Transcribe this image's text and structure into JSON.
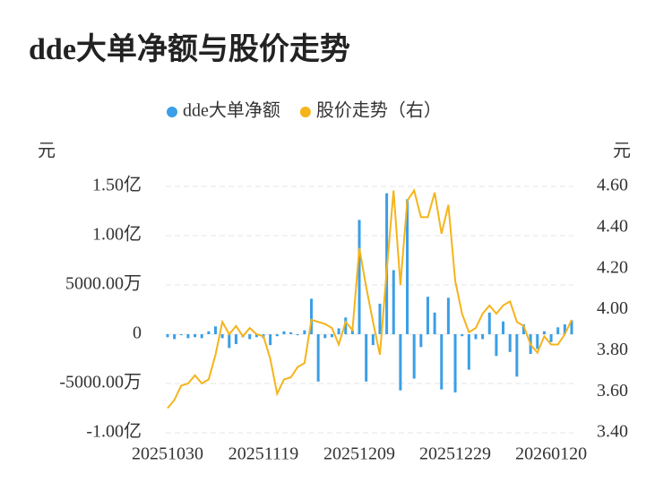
{
  "chart_data": {
    "type": "bar",
    "title": "dde大单净额与股价走势",
    "ylabel": "元",
    "y2label": "元",
    "categories": [
      "20251030",
      null,
      null,
      null,
      null,
      null,
      null,
      null,
      null,
      null,
      null,
      null,
      null,
      null,
      "20251119",
      null,
      null,
      null,
      null,
      null,
      null,
      null,
      null,
      null,
      null,
      null,
      null,
      null,
      "20251209",
      null,
      null,
      null,
      null,
      null,
      null,
      null,
      null,
      null,
      null,
      null,
      null,
      null,
      "20251229",
      null,
      null,
      null,
      null,
      null,
      null,
      null,
      null,
      null,
      null,
      null,
      null,
      null,
      "20260120",
      null,
      null,
      null
    ],
    "series": [
      {
        "name": "dde大单净额",
        "type": "bar",
        "color": "#3a9fe6",
        "values": [
          -300,
          -500,
          -100,
          -400,
          -300,
          -400,
          300,
          800,
          -400,
          -1400,
          -1000,
          -300,
          -500,
          -300,
          -400,
          -1100,
          -200,
          300,
          200,
          -100,
          400,
          3600,
          -4800,
          -400,
          -300,
          600,
          1700,
          400,
          11600,
          -4800,
          -1100,
          3100,
          14300,
          6500,
          -5700,
          13700,
          -4500,
          -1300,
          3800,
          2200,
          -5600,
          3700,
          -5900,
          -200,
          -3600,
          -500,
          -500,
          2200,
          -2200,
          1300,
          -1800,
          -4300,
          1000,
          -2000,
          -1500,
          300,
          -800,
          700,
          1000,
          1400
        ]
      },
      {
        "name": "股价走势（右）",
        "type": "line",
        "axis": "y2",
        "color": "#f5b41c",
        "values": [
          3.52,
          3.56,
          3.63,
          3.64,
          3.68,
          3.64,
          3.66,
          3.78,
          3.94,
          3.88,
          3.92,
          3.87,
          3.91,
          3.88,
          3.87,
          3.76,
          3.59,
          3.66,
          3.67,
          3.72,
          3.74,
          3.95,
          3.94,
          3.93,
          3.91,
          3.83,
          3.94,
          3.9,
          4.3,
          4.11,
          3.94,
          3.78,
          4.19,
          4.58,
          4.12,
          4.53,
          4.58,
          4.45,
          4.45,
          4.57,
          4.37,
          4.51,
          4.14,
          3.98,
          3.89,
          3.91,
          3.98,
          4.02,
          3.98,
          4.02,
          4.04,
          3.94,
          3.92,
          3.83,
          3.79,
          3.87,
          3.83,
          3.83,
          3.88,
          3.95
        ]
      }
    ],
    "ylim": [
      -10000,
      15000
    ],
    "yticks": [
      {
        "value": 15000,
        "label": "1.50亿"
      },
      {
        "value": 10000,
        "label": "1.00亿"
      },
      {
        "value": 5000,
        "label": "5000.00万"
      },
      0,
      {
        "value": -5000,
        "label": "-5000.00万"
      },
      {
        "value": -10000,
        "label": "-1.00亿"
      }
    ],
    "y2lim": [
      3.4,
      4.6
    ],
    "y2ticks": [
      {
        "value": 4.6,
        "label": "4.60"
      },
      {
        "value": 4.4,
        "label": "4.40"
      },
      {
        "value": 4.2,
        "label": "4.20"
      },
      {
        "value": 4.0,
        "label": "4.00"
      },
      {
        "value": 3.8,
        "label": "3.80"
      },
      {
        "value": 3.6,
        "label": "3.60"
      },
      {
        "value": 3.4,
        "label": "3.40"
      }
    ],
    "grid": true
  }
}
